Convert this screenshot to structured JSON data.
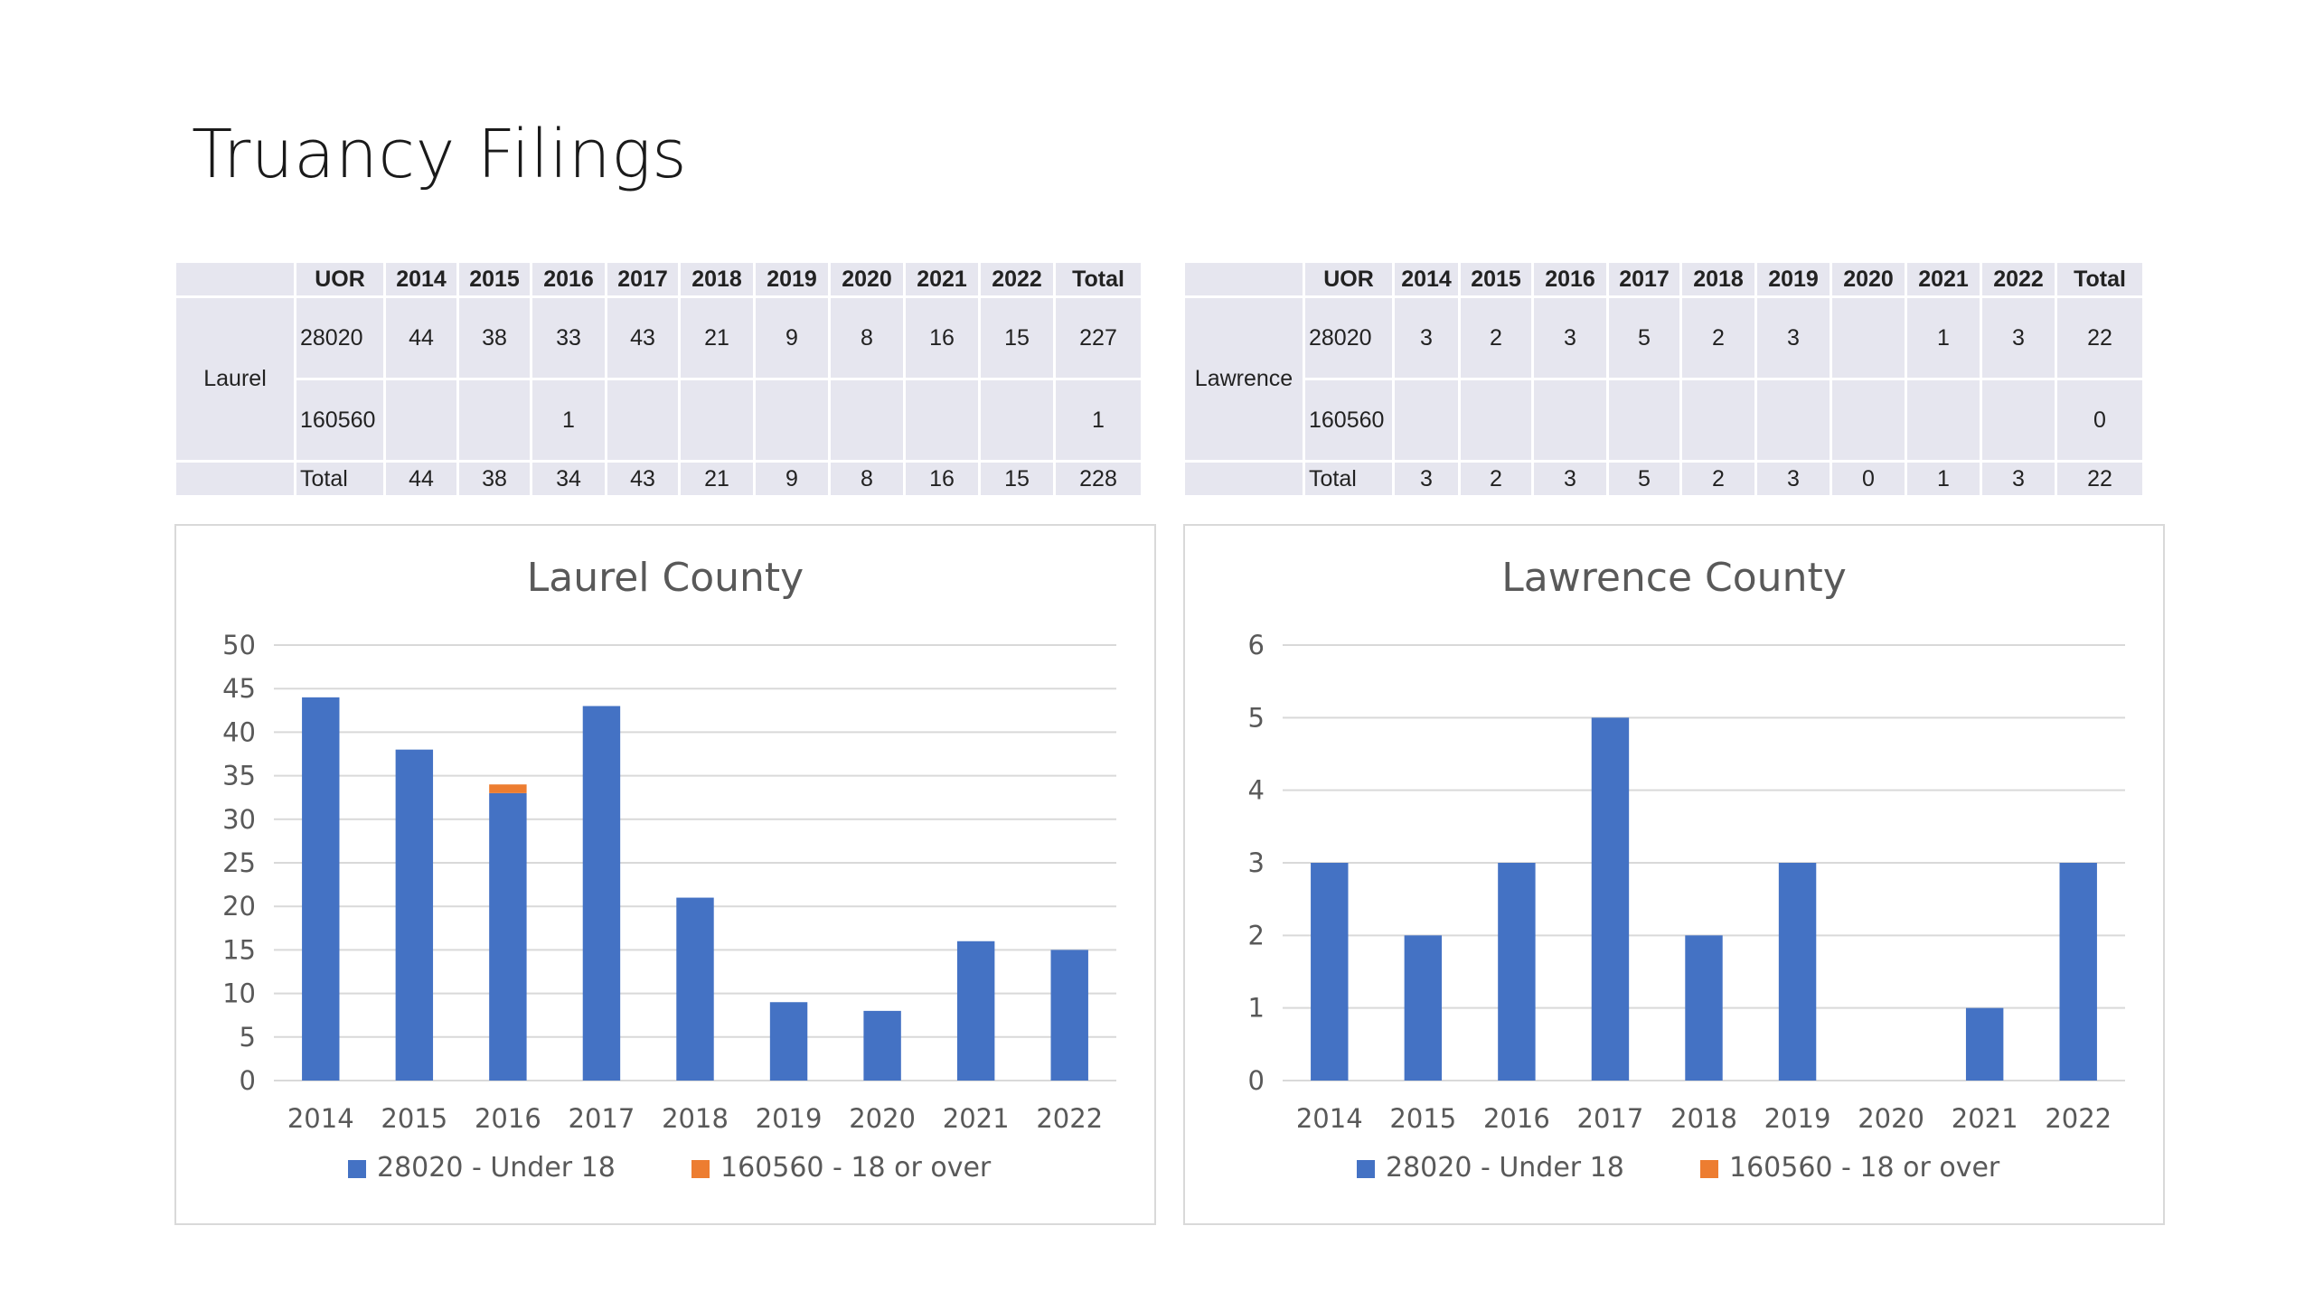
{
  "title": "Truancy Filings",
  "tables": [
    {
      "county": "Laurel",
      "headers": [
        "UOR",
        "2014",
        "2015",
        "2016",
        "2017",
        "2018",
        "2019",
        "2020",
        "2021",
        "2022",
        "Total"
      ],
      "rows": [
        [
          "28020",
          "44",
          "38",
          "33",
          "43",
          "21",
          "9",
          "8",
          "16",
          "15",
          "227"
        ],
        [
          "160560",
          "",
          "",
          "1",
          "",
          "",
          "",
          "",
          "",
          "",
          "1"
        ],
        [
          "Total",
          "44",
          "38",
          "34",
          "43",
          "21",
          "9",
          "8",
          "16",
          "15",
          "228"
        ]
      ]
    },
    {
      "county": "Lawrence",
      "headers": [
        "UOR",
        "2014",
        "2015",
        "2016",
        "2017",
        "2018",
        "2019",
        "2020",
        "2021",
        "2022",
        "Total"
      ],
      "rows": [
        [
          "28020",
          "3",
          "2",
          "3",
          "5",
          "2",
          "3",
          "",
          "1",
          "3",
          "22"
        ],
        [
          "160560",
          "",
          "",
          "",
          "",
          "",
          "",
          "",
          "",
          "",
          "0"
        ],
        [
          "Total",
          "3",
          "2",
          "3",
          "5",
          "2",
          "3",
          "0",
          "1",
          "3",
          "22"
        ]
      ]
    }
  ],
  "chart_data": [
    {
      "type": "bar",
      "stacked": true,
      "title": "Laurel County",
      "categories": [
        "2014",
        "2015",
        "2016",
        "2017",
        "2018",
        "2019",
        "2020",
        "2021",
        "2022"
      ],
      "series": [
        {
          "name": "28020 - Under 18",
          "color": "#4472c4",
          "values": [
            44,
            38,
            33,
            43,
            21,
            9,
            8,
            16,
            15
          ]
        },
        {
          "name": "160560 - 18 or over",
          "color": "#ed7d31",
          "values": [
            0,
            0,
            1,
            0,
            0,
            0,
            0,
            0,
            0
          ]
        }
      ],
      "ylim": [
        0,
        50
      ],
      "yticks": [
        0,
        5,
        10,
        15,
        20,
        25,
        30,
        35,
        40,
        45,
        50
      ],
      "grid": true,
      "legend": "bottom"
    },
    {
      "type": "bar",
      "stacked": true,
      "title": "Lawrence County",
      "categories": [
        "2014",
        "2015",
        "2016",
        "2017",
        "2018",
        "2019",
        "2020",
        "2021",
        "2022"
      ],
      "series": [
        {
          "name": "28020 - Under 18",
          "color": "#4472c4",
          "values": [
            3,
            2,
            3,
            5,
            2,
            3,
            0,
            1,
            3
          ]
        },
        {
          "name": "160560 - 18 or over",
          "color": "#ed7d31",
          "values": [
            0,
            0,
            0,
            0,
            0,
            0,
            0,
            0,
            0
          ]
        }
      ],
      "ylim": [
        0,
        6
      ],
      "yticks": [
        0,
        1,
        2,
        3,
        4,
        5,
        6
      ],
      "grid": true,
      "legend": "bottom"
    }
  ]
}
